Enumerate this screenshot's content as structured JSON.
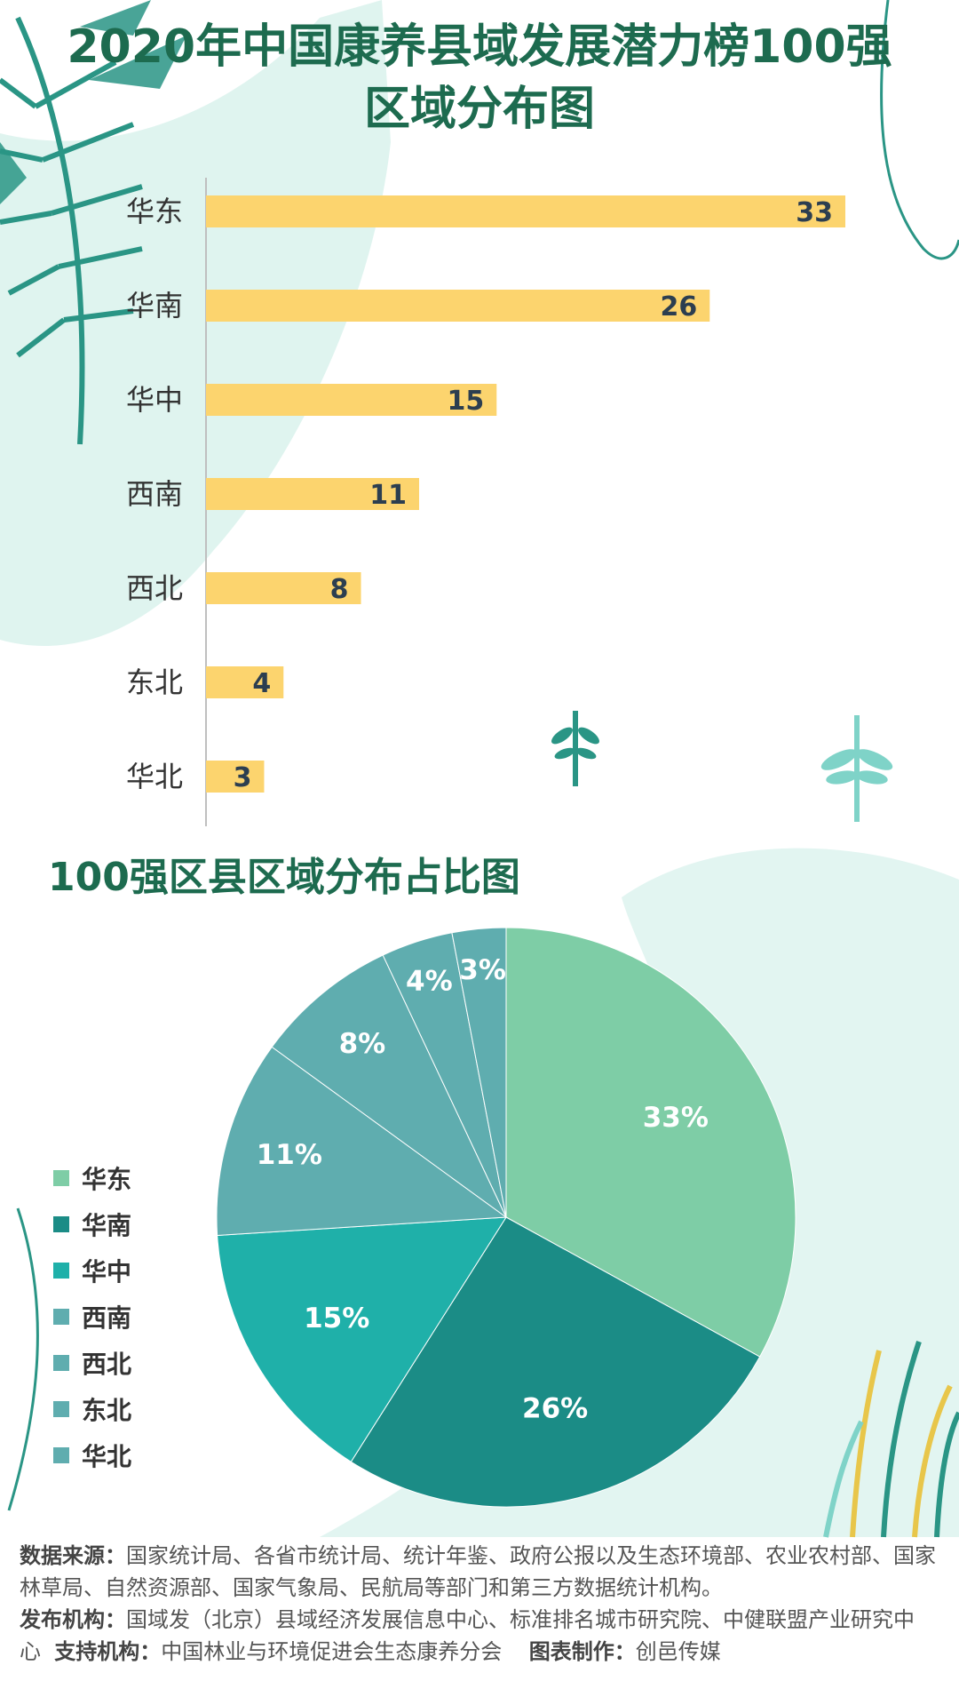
{
  "page": {
    "title_line1": "2020年中国康养县域发展潜力榜100强",
    "title_line2": "区域分布图",
    "subtitle": "100强区县区域分布占比图"
  },
  "colors": {
    "title": "#1d6b4f",
    "bar": "#fcd46e",
    "pie": [
      "#7ecda6",
      "#1b8c86",
      "#1fb0a9",
      "#5fadaf",
      "#5fadaf",
      "#5fadaf",
      "#5fadaf"
    ]
  },
  "chart_data": [
    {
      "type": "bar",
      "orientation": "horizontal",
      "categories": [
        "华东",
        "华南",
        "华中",
        "西南",
        "西北",
        "东北",
        "华北"
      ],
      "values": [
        33,
        26,
        15,
        11,
        8,
        4,
        3
      ],
      "xlim": [
        0,
        33
      ],
      "grid": false,
      "data_labels": true
    },
    {
      "type": "pie",
      "categories": [
        "华东",
        "华南",
        "华中",
        "西南",
        "西北",
        "东北",
        "华北"
      ],
      "values": [
        33,
        26,
        15,
        11,
        8,
        4,
        3
      ],
      "labels": [
        "33%",
        "26%",
        "15%",
        "11%",
        "8%",
        "4%",
        "3%"
      ],
      "legend": "left"
    }
  ],
  "footer": {
    "source_label": "数据来源：",
    "source_text": "国家统计局、各省市统计局、统计年鉴、政府公报以及生态环境部、农业农村部、国家林草局、自然资源部、国家气象局、民航局等部门和第三方数据统计机构。",
    "publisher_label": "发布机构：",
    "publisher_text": "国域发（北京）县域经济发展信息中心、标准排名城市研究院、中健联盟产业研究中心",
    "support_label": "支持机构：",
    "support_text": "中国林业与环境促进会生态康养分会",
    "maker_label": "图表制作：",
    "maker_text": "创邑传媒"
  }
}
